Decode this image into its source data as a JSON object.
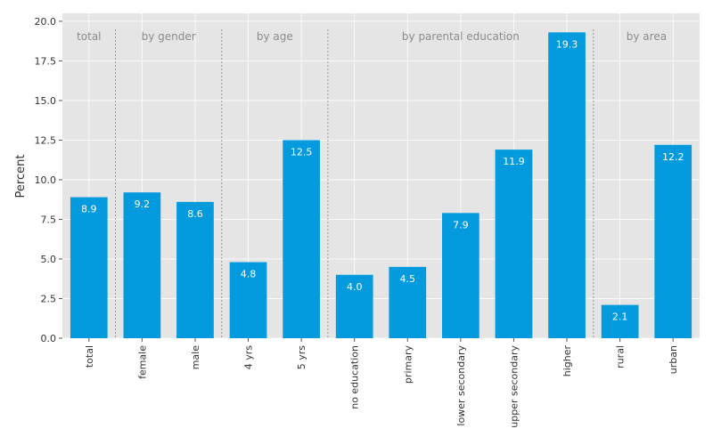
{
  "chart_data": {
    "type": "bar",
    "categories": [
      "total",
      "female",
      "male",
      "4 yrs",
      "5 yrs",
      "no education",
      "primary",
      "lower secondary",
      "upper secondary",
      "higher",
      "rural",
      "urban"
    ],
    "values": [
      8.9,
      9.2,
      8.6,
      4.8,
      12.5,
      4.0,
      4.5,
      7.9,
      11.9,
      19.3,
      2.1,
      12.2
    ],
    "value_labels": [
      "8.9",
      "9.2",
      "8.6",
      "4.8",
      "12.5",
      "4.0",
      "4.5",
      "7.9",
      "11.9",
      "19.3",
      "2.1",
      "12.2"
    ],
    "groups": [
      {
        "label": "total",
        "start": 0,
        "end": 0
      },
      {
        "label": "by gender",
        "start": 1,
        "end": 2
      },
      {
        "label": "by age",
        "start": 3,
        "end": 4
      },
      {
        "label": "by parental education",
        "start": 5,
        "end": 9
      },
      {
        "label": "by area",
        "start": 10,
        "end": 11
      }
    ],
    "ylabel": "Percent",
    "xlabel": "",
    "ylim": [
      0,
      20.5
    ],
    "yticks": [
      0,
      2.5,
      5,
      7.5,
      10,
      12.5,
      15,
      17.5,
      20
    ],
    "ytick_labels": [
      "0.0",
      "2.5",
      "5.0",
      "7.5",
      "10.0",
      "12.5",
      "15.0",
      "17.5",
      "20.0"
    ],
    "grid": true,
    "bar_color": "#049ADE",
    "background_color": "#E5E5E5",
    "grid_color": "#FFFFFF",
    "separator_color": "#999999"
  }
}
